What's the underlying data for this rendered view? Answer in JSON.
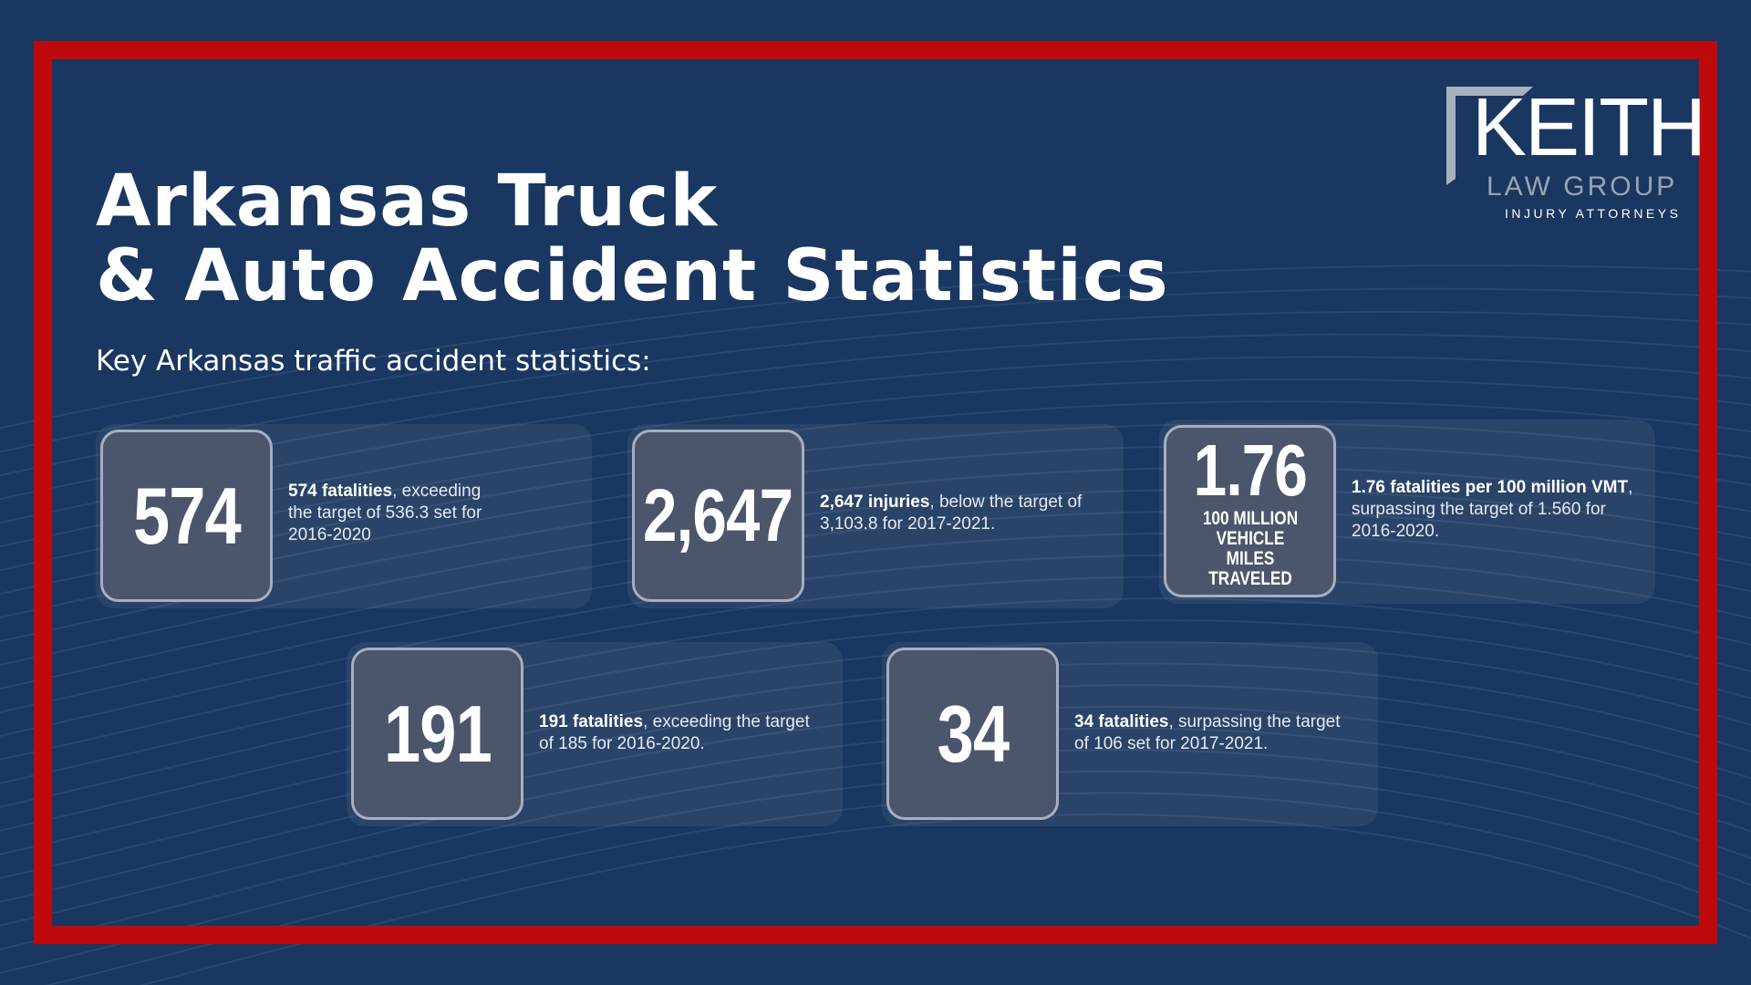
{
  "logo": {
    "name": "KEITH",
    "line2": "LAW GROUP",
    "line3": "INJURY ATTORNEYS"
  },
  "title": {
    "line1": "Arkansas Truck",
    "line2": "& Auto Accident Statistics"
  },
  "subtitle": "Key Arkansas traffic accident statistics:",
  "colors": {
    "background": "#193760",
    "frame": "#be0a0c",
    "box": "#4b566c"
  },
  "stats": [
    {
      "value": "574",
      "bold": "574 fatalities",
      "rest": ", exceeding the target of 536.3 set for 2016-2020"
    },
    {
      "value": "2,647",
      "bold": "2,647 injuries",
      "rest": ", below the target of 3,103.8 for 2017-2021."
    },
    {
      "value": "1.76",
      "unit": "100 MILLION VEHICLE MILES TRAVELED",
      "bold": "1.76 fatalities per 100 million VMT",
      "rest": ", surpassing the target of 1.560 for 2016-2020."
    },
    {
      "value": "191",
      "bold": "191 fatalities",
      "rest": ", exceeding the target of 185 for 2016-2020."
    },
    {
      "value": "34",
      "bold": "34 fatalities",
      "rest": ", surpassing the target of 106 set for 2017-2021."
    }
  ]
}
